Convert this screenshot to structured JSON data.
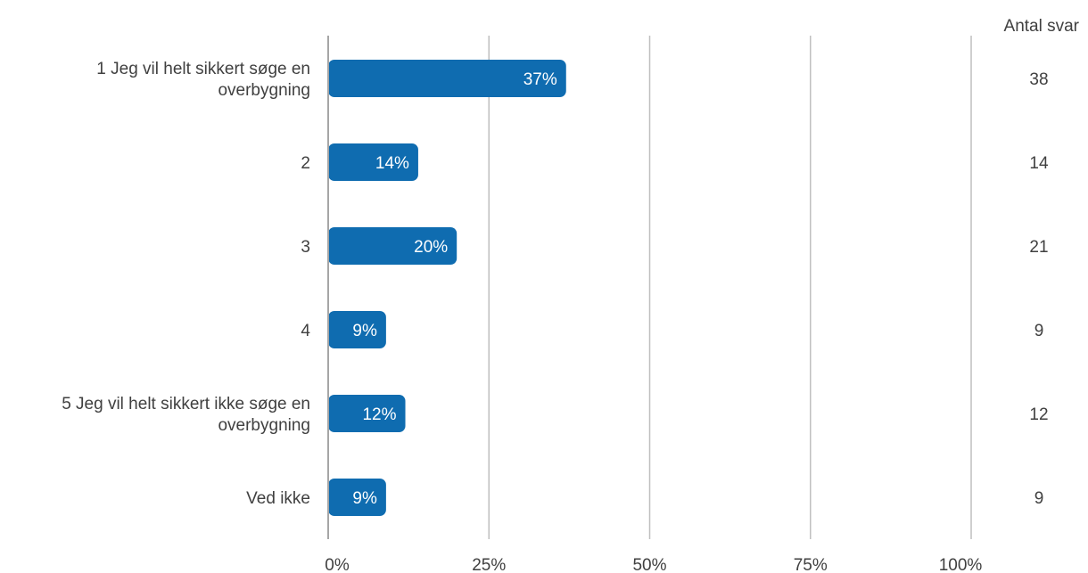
{
  "chart_data": {
    "type": "bar",
    "orientation": "horizontal",
    "categories": [
      "1 Jeg vil helt sikkert søge en overbygning",
      "2",
      "3",
      "4",
      "5 Jeg vil helt sikkert ikke søge en overbygning",
      "Ved ikke"
    ],
    "category_lines": [
      [
        "1 Jeg vil helt sikkert søge en",
        "overbygning"
      ],
      [
        "2"
      ],
      [
        "3"
      ],
      [
        "4"
      ],
      [
        "5 Jeg vil helt sikkert ikke søge en",
        "overbygning"
      ],
      [
        "Ved ikke"
      ]
    ],
    "values": [
      37,
      14,
      20,
      9,
      12,
      9
    ],
    "value_labels": [
      "37%",
      "14%",
      "20%",
      "9%",
      "12%",
      "9%"
    ],
    "counts_header": "Antal svar",
    "counts": [
      "38",
      "14",
      "21",
      "9",
      "12",
      "9"
    ],
    "xlim": [
      0,
      100
    ],
    "x_ticks": [
      "0%",
      "25%",
      "50%",
      "75%",
      "100%"
    ],
    "grid": true,
    "colors": {
      "bar": "#0f6cb0",
      "grid": "#bfbfbf",
      "axis": "#a6a6a6",
      "text": "#404040"
    }
  }
}
